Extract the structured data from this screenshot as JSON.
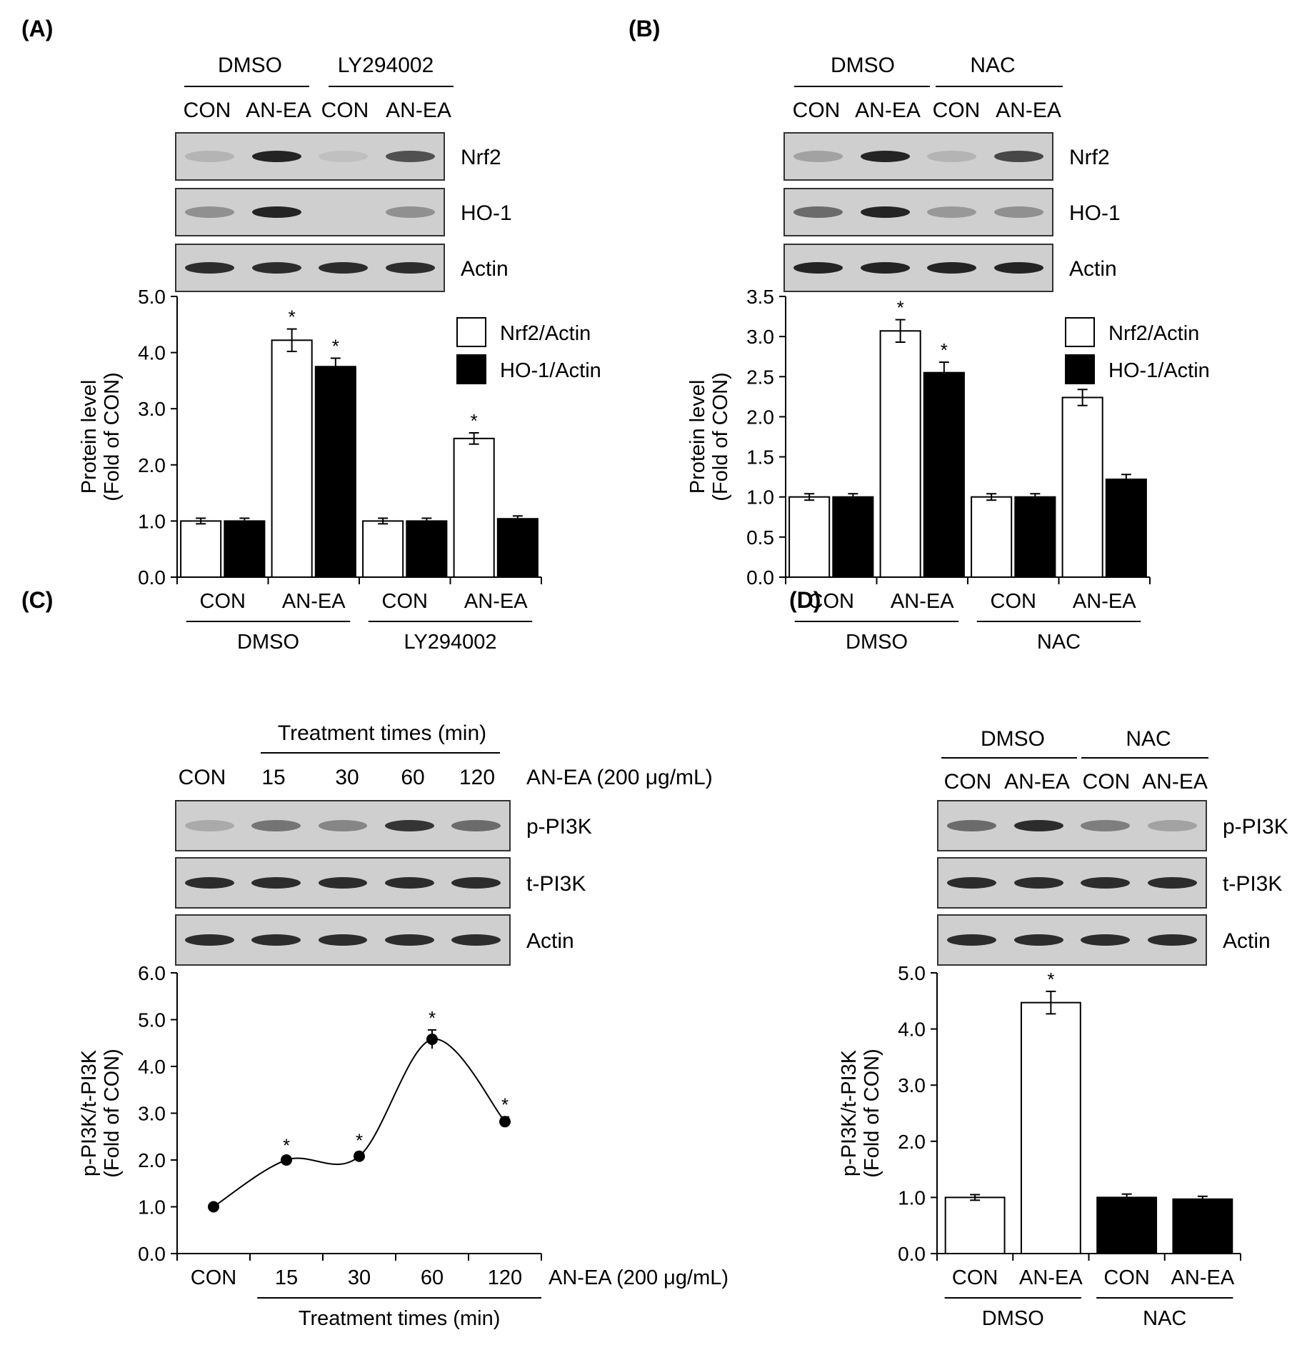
{
  "panels": {
    "A": {
      "label": "(A)",
      "groups": [
        "DMSO",
        "LY294002"
      ],
      "lanes": [
        "CON",
        "AN-EA",
        "CON",
        "AN-EA"
      ],
      "blot_labels": [
        "Nrf2",
        "HO-1",
        "Actin"
      ],
      "band_intensity": [
        [
          0.15,
          0.95,
          0.08,
          0.7
        ],
        [
          0.35,
          0.95,
          0.0,
          0.35
        ],
        [
          0.9,
          0.9,
          0.9,
          0.9
        ]
      ]
    },
    "B": {
      "label": "(B)",
      "groups": [
        "DMSO",
        "NAC"
      ],
      "lanes": [
        "CON",
        "AN-EA",
        "CON",
        "AN-EA"
      ],
      "blot_labels": [
        "Nrf2",
        "HO-1",
        "Actin"
      ],
      "band_intensity": [
        [
          0.25,
          0.95,
          0.15,
          0.75
        ],
        [
          0.55,
          0.95,
          0.3,
          0.35
        ],
        [
          0.95,
          0.95,
          0.95,
          0.95
        ]
      ]
    },
    "C": {
      "label": "(C)",
      "header": "Treatment  times (min)",
      "lanes": [
        "CON",
        "15",
        "30",
        "60",
        "120"
      ],
      "treatment_label": "AN-EA (200 μg/mL)",
      "blot_labels": [
        "p-PI3K",
        "t-PI3K",
        "Actin"
      ],
      "band_intensity": [
        [
          0.2,
          0.5,
          0.4,
          0.85,
          0.55
        ],
        [
          0.9,
          0.9,
          0.9,
          0.9,
          0.9
        ],
        [
          0.9,
          0.9,
          0.9,
          0.9,
          0.9
        ]
      ]
    },
    "D": {
      "label": "(D)",
      "groups": [
        "DMSO",
        "NAC"
      ],
      "lanes": [
        "CON",
        "AN-EA",
        "CON",
        "AN-EA"
      ],
      "blot_labels": [
        "p-PI3K",
        "t-PI3K",
        "Actin"
      ],
      "band_intensity": [
        [
          0.55,
          0.9,
          0.45,
          0.25
        ],
        [
          0.9,
          0.9,
          0.9,
          0.9
        ],
        [
          0.9,
          0.9,
          0.9,
          0.9
        ]
      ]
    }
  },
  "chart_data": [
    {
      "id": "A",
      "type": "bar",
      "ylabel": [
        "Protein level",
        "(Fold of CON)"
      ],
      "ylim": [
        0,
        5
      ],
      "yticks": [
        "0.0",
        "1.0",
        "2.0",
        "3.0",
        "4.0",
        "5.0"
      ],
      "categories": [
        "CON",
        "AN-EA",
        "CON",
        "AN-EA"
      ],
      "groups": [
        "DMSO",
        "LY294002"
      ],
      "series": [
        {
          "name": "Nrf2/Actin",
          "fill": "#ffffff",
          "values": [
            1.0,
            4.22,
            1.0,
            2.47
          ],
          "errors": [
            0.05,
            0.2,
            0.05,
            0.1
          ],
          "sig": [
            false,
            true,
            false,
            true
          ]
        },
        {
          "name": "HO-1/Actin",
          "fill": "#000000",
          "values": [
            1.0,
            3.75,
            1.0,
            1.04
          ],
          "errors": [
            0.05,
            0.15,
            0.05,
            0.05
          ],
          "sig": [
            false,
            true,
            false,
            false
          ]
        }
      ],
      "legend": "top-right"
    },
    {
      "id": "B",
      "type": "bar",
      "ylabel": [
        "Protein level",
        "(Fold of CON)"
      ],
      "ylim": [
        0,
        3.5
      ],
      "yticks": [
        "0.0",
        "0.5",
        "1.0",
        "1.5",
        "2.0",
        "2.5",
        "3.0",
        "3.5"
      ],
      "categories": [
        "CON",
        "AN-EA",
        "CON",
        "AN-EA"
      ],
      "groups": [
        "DMSO",
        "NAC"
      ],
      "series": [
        {
          "name": "Nrf2/Actin",
          "fill": "#ffffff",
          "values": [
            1.0,
            3.07,
            1.0,
            2.24
          ],
          "errors": [
            0.04,
            0.14,
            0.04,
            0.1
          ],
          "sig": [
            false,
            true,
            false,
            true
          ]
        },
        {
          "name": "HO-1/Actin",
          "fill": "#000000",
          "values": [
            1.0,
            2.55,
            1.0,
            1.22
          ],
          "errors": [
            0.04,
            0.13,
            0.04,
            0.06
          ],
          "sig": [
            false,
            true,
            false,
            false
          ]
        }
      ],
      "legend": "top-right"
    },
    {
      "id": "C",
      "type": "line",
      "ylabel": [
        "p-PI3K/t-PI3K",
        "(Fold of CON)"
      ],
      "ylim": [
        0,
        6
      ],
      "yticks": [
        "0.0",
        "1.0",
        "2.0",
        "3.0",
        "4.0",
        "5.0",
        "6.0"
      ],
      "categories": [
        "CON",
        "15",
        "30",
        "60",
        "120"
      ],
      "x_treatment": "AN-EA (200 μg/mL)",
      "xlabel": "Treatment  times (min)",
      "values": [
        1.0,
        2.0,
        2.08,
        4.58,
        2.82
      ],
      "errors": [
        0.03,
        0.05,
        0.08,
        0.2,
        0.1
      ],
      "sig": [
        false,
        true,
        true,
        true,
        true
      ]
    },
    {
      "id": "D",
      "type": "bar",
      "ylabel": [
        "p-PI3K/t-PI3K",
        "(Fold of CON)"
      ],
      "ylim": [
        0,
        5
      ],
      "yticks": [
        "0.0",
        "1.0",
        "2.0",
        "3.0",
        "4.0",
        "5.0"
      ],
      "categories": [
        "CON",
        "AN-EA",
        "CON",
        "AN-EA"
      ],
      "groups": [
        "DMSO",
        "NAC"
      ],
      "values": [
        1.0,
        4.47,
        1.0,
        0.97
      ],
      "errors": [
        0.05,
        0.2,
        0.06,
        0.05
      ],
      "fills": [
        "#ffffff",
        "#ffffff",
        "#000000",
        "#000000"
      ],
      "sig": [
        false,
        true,
        false,
        false
      ]
    }
  ]
}
